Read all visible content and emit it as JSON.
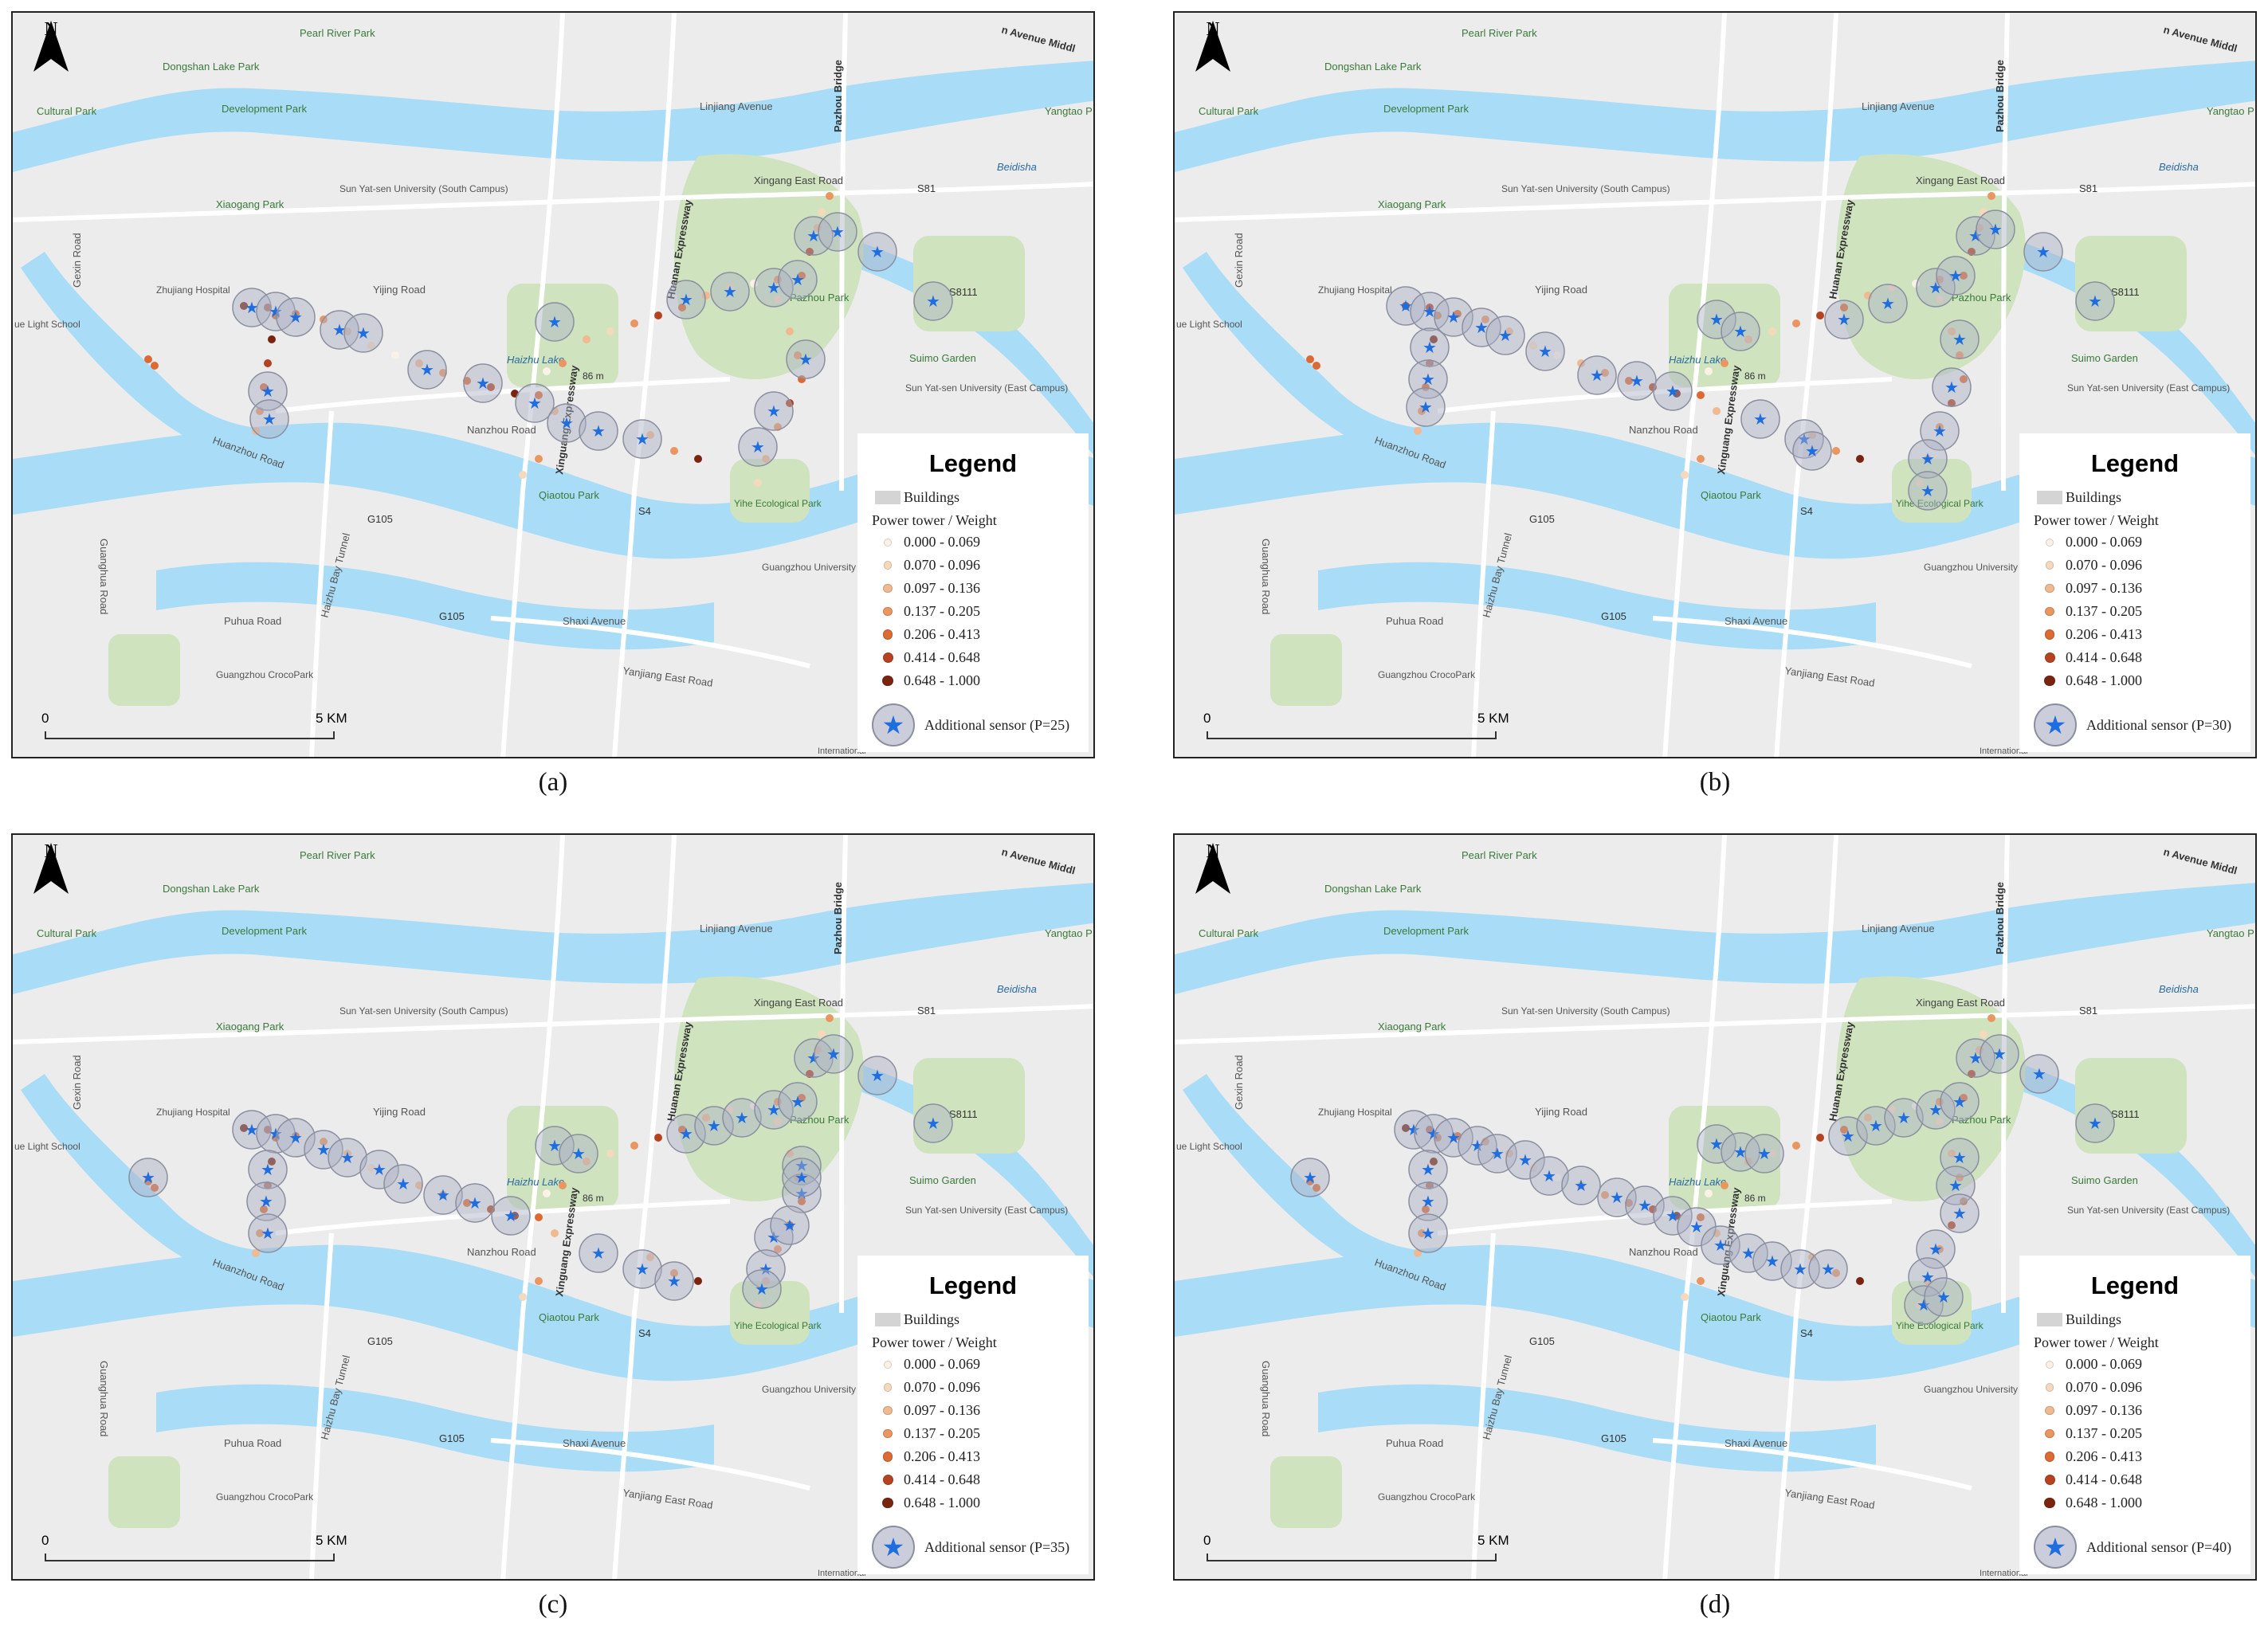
{
  "map_labels": {
    "pearl_river_park": "Pearl River Park",
    "dongshan_lake_park": "Dongshan Lake Park",
    "cultural_park": "Cultural Park",
    "development_park": "Development Park",
    "yangtao": "Yangtao P",
    "linjiang_avenue": "Linjiang Avenue",
    "pazhou_bridge": "Pazhou Bridge",
    "avenue_middle": "n Avenue Middl",
    "sysu": "Sun Yat-sen University (South Campus)",
    "xiaogang_park": "Xiaogang Park",
    "xingang_east_road": "Xingang East Road",
    "beidisha": "Beidisha",
    "s81": "S81",
    "s8111": "S8111",
    "gexin_road": "Gexin Road",
    "zhujiang_hospital": "Zhujiang Hospital",
    "yijing_road": "Yijing Road",
    "light_school": "ue Light School",
    "huanan_expressway": "Huanan Expressway",
    "xinguang_expressway": "Xinguang Expressway",
    "haizhu_lake": "Haizhu Lake",
    "elev": "86 m",
    "pazhou_park": "Pazhou Park",
    "suimo_garden": "Suimo Garden",
    "sysu_east": "Sun Yat-sen University (East Campus)",
    "nanzhou_road": "Nanzhou Road",
    "huanzhou_road": "Huanzhou Road",
    "qiaotou_park": "Qiaotou Park",
    "s4": "S4",
    "g105": "G105",
    "yihe_park": "Yihe Ecological Park",
    "haizhu_bay_tunnel": "Haizhu Bay Tunnel",
    "guangzhou_university": "Guangzhou University (HEMC Campus)",
    "puhua_road": "Puhua Road",
    "shaxi_avenue": "Shaxi Avenue",
    "yanjiang_east_road": "Yanjiang East Road",
    "crocopark": "Guangzhou CrocoPark",
    "guanghua_road": "Guanghua Road",
    "international": "International"
  },
  "north_label": "N",
  "scale": {
    "zero": "0",
    "km": "5 KM"
  },
  "legend": {
    "title": "Legend",
    "buildings": "Buildings",
    "subtitle": "Power tower / Weight",
    "classes": [
      {
        "label": "0.000 - 0.069",
        "color": "#fbf1e6"
      },
      {
        "label": "0.070 - 0.096",
        "color": "#f6d9bd"
      },
      {
        "label": "0.097 - 0.136",
        "color": "#f0b98f"
      },
      {
        "label": "0.137 - 0.205",
        "color": "#e99661"
      },
      {
        "label": "0.206 - 0.413",
        "color": "#dc6a33"
      },
      {
        "label": "0.414 - 0.648",
        "color": "#b54220"
      },
      {
        "label": "0.648 - 1.000",
        "color": "#7a2410"
      }
    ]
  },
  "panels": [
    {
      "caption": "(a)",
      "sensor_label": "Additional sensor (P=25)",
      "sensor_count": 25
    },
    {
      "caption": "(b)",
      "sensor_label": "Additional sensor (P=30)",
      "sensor_count": 30
    },
    {
      "caption": "(c)",
      "sensor_label": "Additional sensor (P=35)",
      "sensor_count": 35
    },
    {
      "caption": "(d)",
      "sensor_label": "Additional sensor (P=40)",
      "sensor_count": 40
    }
  ],
  "colors": {
    "land": "#ececec",
    "water": "#a9dcf6",
    "park": "#cfe3bf",
    "road": "#ffffff",
    "sensor_star": "#1f6ee0",
    "sensor_ring": "#b7bccb"
  }
}
